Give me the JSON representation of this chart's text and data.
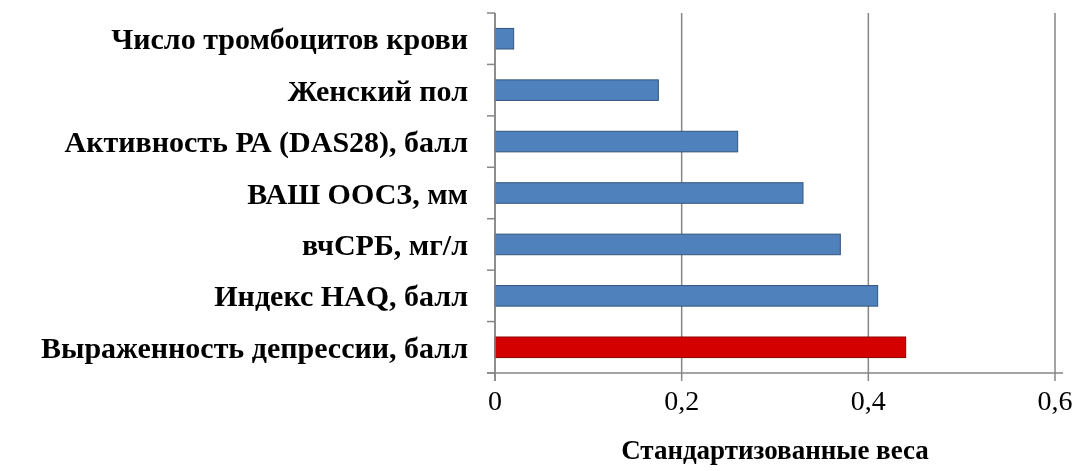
{
  "chart_data": {
    "type": "bar",
    "orientation": "horizontal",
    "categories": [
      "Число тромбоцитов крови",
      "Женский пол",
      "Активность РА (DAS28), балл",
      "ВАШ ООСЗ, мм",
      "вчСРБ, мг/л",
      "Индекс HAQ, балл",
      "Выраженность депрессии, балл"
    ],
    "values": [
      0.02,
      0.175,
      0.26,
      0.33,
      0.37,
      0.41,
      0.44
    ],
    "colors": [
      "#4f81bd",
      "#4f81bd",
      "#4f81bd",
      "#4f81bd",
      "#4f81bd",
      "#4f81bd",
      "#d40000"
    ],
    "xlabel": "Стандартизованные веса",
    "xlim": [
      0,
      0.6
    ],
    "xticks": [
      0,
      {
        "value": 0.2,
        "label": "0,2"
      },
      {
        "value": 0.4,
        "label": "0,4"
      },
      {
        "value": 0.6,
        "label": "0,6"
      }
    ],
    "grid": "x"
  }
}
